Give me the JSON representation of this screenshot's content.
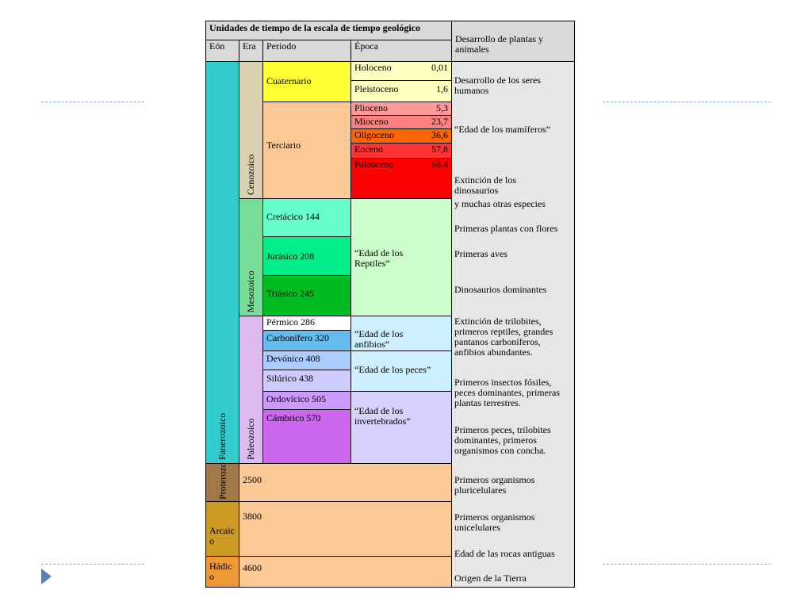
{
  "colors": {
    "fanerozoico": "#33cccc",
    "cenozoico": "#d9d0b0",
    "mesozoico": "#77dd99",
    "paleozoico": "#ddbbee",
    "proterozoico": "#a0784a",
    "arcaico": "#cc9922",
    "hadico": "#ee9933",
    "cuaternario": "#ffff33",
    "terciario": "#fcc896",
    "cretacico": "#66ffcc",
    "jurasico": "#00ee88",
    "triasico": "#00bb22",
    "permico": "#ffffff",
    "carbonifero": "#66bbee",
    "devonico": "#aaccff",
    "silurico": "#ccccff",
    "ordovicico": "#cc99ff",
    "cambrico": "#cc66ee",
    "precambrian_fill": "#fcc896",
    "desc_bg": "#e6e6e6",
    "header_bg": "#d9d9d9"
  },
  "header": {
    "title": "Unidades de tiempo de la escala de tiempo geológico",
    "eon": "Eón",
    "era": "Era",
    "periodo": "Periodo",
    "epoca": "Época",
    "desarrollo": "Desarrollo de plantas y animales"
  },
  "eons": {
    "fanerozoico": "Fanerozoico",
    "proterozoico": "Proterozoico",
    "arcaico": "Arcaico",
    "hadico": "Hádico"
  },
  "eras": {
    "cenozoico": "Cenozoico",
    "mesozoico": "Mesozoico",
    "paleozoico": "Paleozoico"
  },
  "periods": {
    "cuaternario": "Cuaternario",
    "terciario": "Terciario",
    "cretacico": "Cretácico 144",
    "jurasico": "Jurásico  208",
    "triasico": "Triásico  245",
    "permico": "Pérmico  286",
    "carbonifero": "Carbonífero  320",
    "devonico": "Devónico    408",
    "silurico": "Silúrico    438",
    "ordovicico": "Ordovícico 505",
    "cambrico": "Cámbrico  570"
  },
  "epochs": [
    {
      "name": "Holoceno",
      "age": "0,01",
      "color": "#ffffc0"
    },
    {
      "name": "Pleistoceno",
      "age": "1,6",
      "color": "#ffffc0"
    },
    {
      "name": "Plioceno",
      "age": "5,3",
      "color": "#ff9999"
    },
    {
      "name": "Mioceno",
      "age": "23,7",
      "color": "#ff8080"
    },
    {
      "name": "Oligoceno",
      "age": "36,6",
      "color": "#ff6600"
    },
    {
      "name": "Eoceno",
      "age": "57,8",
      "color": "#ff3333"
    },
    {
      "name": "Paleoceno",
      "age": "66,4",
      "color": "#ff0000"
    }
  ],
  "epoch_notes": {
    "reptiles": "“Edad de los Reptiles”",
    "anfibios": "“Edad de los anfibios”",
    "peces": "“Edad de los peces”",
    "invertebrados": "“Edad de los invertebrados”"
  },
  "ages": {
    "proterozoico": "2500",
    "arcaico": "3800",
    "hadico": "4600"
  },
  "descriptions": {
    "humanos": "Desarrollo de los seres humanos",
    "mamiferos": "“Edad de los mamíferos”",
    "extincion_dinos": "Extinción de los dinosaurios",
    "otras_especies": "y muchas otras especies",
    "plantas_flores": "Primeras plantas con flores",
    "aves": "Primeras aves",
    "dinos_dominantes": "Dinosaurios dominantes",
    "trilobites": "Extinción de trilobites, primeros reptiles, grandes pantanos carboníferos, anfibios abundantes.",
    "insectos": "Primeros insectos fósiles, peces dominantes, primeras plantas terrestres.",
    "peces": "Primeros peces, trilobites dominantes, primeros organismos con concha.",
    "pluricelulares": "Primeros organismos pluricelulares",
    "unicelulares": "Primeros organismos unicelulares",
    "rocas": "Edad de las rocas antiguas",
    "origen": "Origen de la Tierra"
  }
}
